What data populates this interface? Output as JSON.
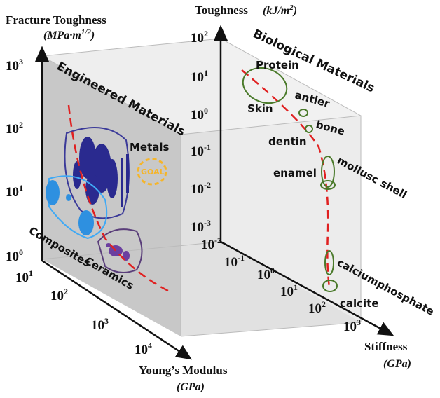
{
  "fracture_axis": {
    "title": "Fracture Toughness",
    "unit_open": "(MPa·m",
    "unit_sup": "1/2",
    "unit_close": ")",
    "ticks": [
      {
        "base": "10",
        "exp": "3"
      },
      {
        "base": "10",
        "exp": "2"
      },
      {
        "base": "10",
        "exp": "1"
      },
      {
        "base": "10",
        "exp": "0"
      }
    ]
  },
  "modulus_axis": {
    "title": "Young’s Modulus",
    "unit": "(GPa)",
    "ticks": [
      {
        "base": "10",
        "exp": "1"
      },
      {
        "base": "10",
        "exp": "2"
      },
      {
        "base": "10",
        "exp": "3"
      },
      {
        "base": "10",
        "exp": "4"
      }
    ]
  },
  "toughness_axis": {
    "title": "Toughness",
    "unit_open": "(kJ/m",
    "unit_sup": "2",
    "unit_close": ")",
    "ticks": [
      {
        "base": "10",
        "exp": "2"
      },
      {
        "base": "10",
        "exp": "1"
      },
      {
        "base": "10",
        "exp": "0"
      },
      {
        "base": "10",
        "exp": "-1"
      },
      {
        "base": "10",
        "exp": "-2"
      },
      {
        "base": "10",
        "exp": "-3"
      }
    ]
  },
  "stiffness_axis": {
    "title": "Stiffness",
    "unit": "(GPa)",
    "ticks": [
      {
        "base": "10",
        "exp": "-2"
      },
      {
        "base": "10",
        "exp": "-1"
      },
      {
        "base": "10",
        "exp": "0"
      },
      {
        "base": "10",
        "exp": "1"
      },
      {
        "base": "10",
        "exp": "2"
      },
      {
        "base": "10",
        "exp": "3"
      }
    ]
  },
  "engineered": {
    "title": "Engineered Materials",
    "metals": "Metals",
    "goal": "GOAL",
    "composites": "Composites",
    "ceramics": "Ceramics"
  },
  "biological": {
    "title": "Biological Materials",
    "labels": [
      "Protein",
      "antler",
      "Skin",
      "bone",
      "dentin",
      "mollusc shell",
      "enamel",
      "calciumphosphate",
      "calcite"
    ]
  }
}
